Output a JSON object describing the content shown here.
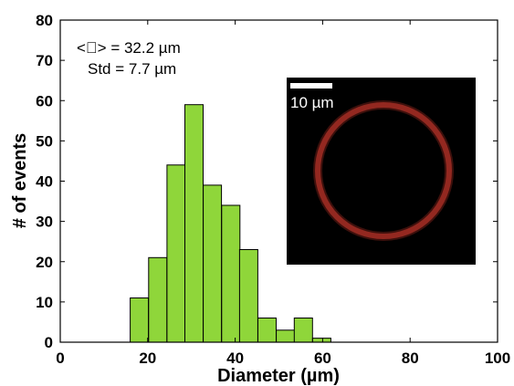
{
  "chart_data": {
    "type": "bar",
    "xlabel": "Diameter (µm)",
    "ylabel": "# of events",
    "xlim": [
      0,
      100
    ],
    "ylim": [
      0,
      80
    ],
    "xticks": [
      0,
      20,
      40,
      60,
      80,
      100
    ],
    "yticks": [
      0,
      10,
      20,
      30,
      40,
      50,
      60,
      70,
      80
    ],
    "bin_width": 4.17,
    "bins": [
      {
        "start": 16.0,
        "count": 11
      },
      {
        "start": 20.2,
        "count": 21
      },
      {
        "start": 24.4,
        "count": 44
      },
      {
        "start": 28.5,
        "count": 59
      },
      {
        "start": 32.7,
        "count": 39
      },
      {
        "start": 36.9,
        "count": 34
      },
      {
        "start": 41.0,
        "count": 23
      },
      {
        "start": 45.2,
        "count": 6
      },
      {
        "start": 49.4,
        "count": 3
      },
      {
        "start": 53.5,
        "count": 6
      },
      {
        "start": 57.7,
        "count": 1
      }
    ],
    "bar_color": "#8fd63a",
    "edge_color": "#000000",
    "grid": false,
    "annotations": {
      "mean": "<⃠> = 32.2 µm",
      "std": "Std = 7.7 µm"
    },
    "inset": {
      "scale_bar_label": "10 µm",
      "background": "#000000",
      "ring_color": "#c0392b"
    }
  }
}
